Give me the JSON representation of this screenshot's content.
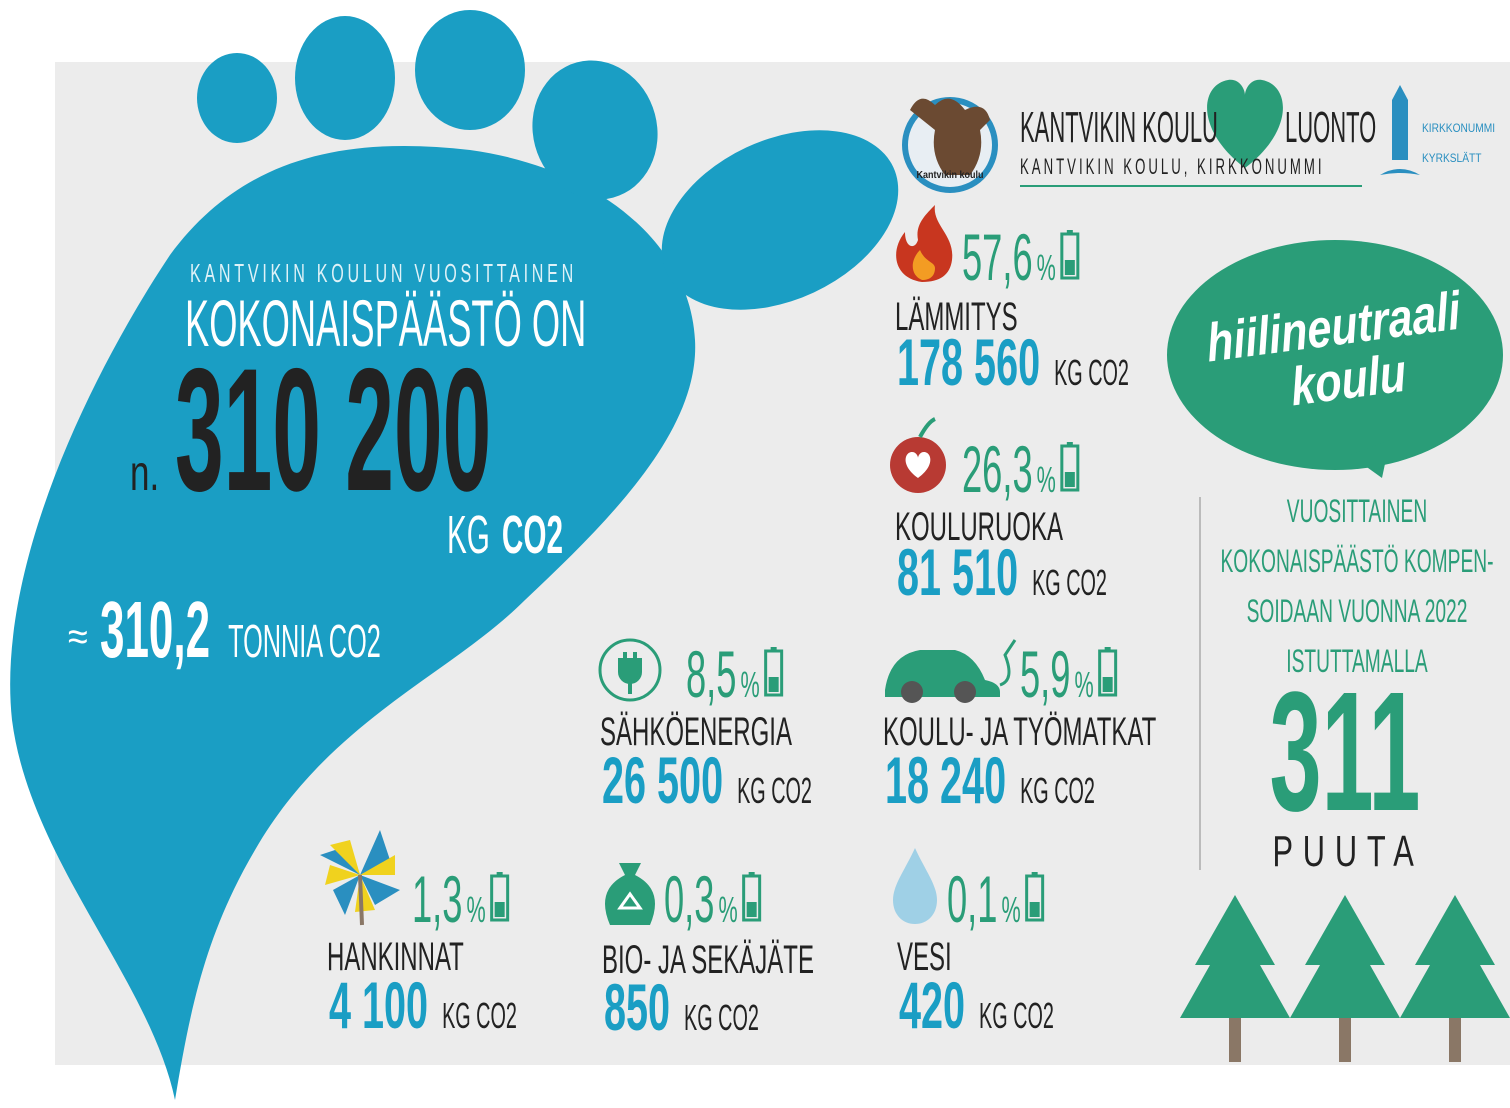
{
  "header": {
    "logo_text": "Kantvikin koulu",
    "school": "KANTVIKIN KOULU",
    "nature": "LUONTO",
    "subtitle": "KANTVIKIN KOULU, KIRKKONUMMI",
    "municipality": [
      "KIRKKONUMMI",
      "KYRKSLÄTT"
    ]
  },
  "total": {
    "intro": "KANTVIKIN KOULUN VUOSITTAINEN",
    "heading": "KOKONAISPÄÄSTÖ ON",
    "prefix": "n.",
    "value": "310 200",
    "unit_light": "KG",
    "unit_bold": "CO2",
    "approx": "≈",
    "tonnes": "310,2",
    "tonnes_unit": "TONNIA CO2"
  },
  "categories": [
    {
      "percent": "57,6",
      "percent_sign": "%",
      "name": "LÄMMITYS",
      "amount": "178 560",
      "unit": "KG CO2"
    },
    {
      "percent": "26,3",
      "percent_sign": "%",
      "name": "KOULURUOKA",
      "amount": "81 510",
      "unit": "KG CO2"
    },
    {
      "percent": "8,5",
      "percent_sign": "%",
      "name": "SÄHKÖENERGIA",
      "amount": "26 500",
      "unit": "KG CO2"
    },
    {
      "percent": "5,9",
      "percent_sign": "%",
      "name": "KOULU- JA TYÖMATKAT",
      "amount": "18 240",
      "unit": "KG CO2"
    },
    {
      "percent": "1,3",
      "percent_sign": "%",
      "name": "HANKINNAT",
      "amount": "4 100",
      "unit": "KG CO2"
    },
    {
      "percent": "0,3",
      "percent_sign": "%",
      "name": "BIO- JA SEKÄJÄTE",
      "amount": "850",
      "unit": "KG CO2"
    },
    {
      "percent": "0,1",
      "percent_sign": "%",
      "name": "VESI",
      "amount": "420",
      "unit": "KG CO2"
    }
  ],
  "neutral": {
    "bubble": [
      "hiilineutraali",
      "koulu"
    ],
    "text": [
      "VUOSITTAINEN",
      "KOKONAISPÄÄSTÖ KOMPEN-",
      "SOIDAAN VUONNA 2022",
      "ISTUTTAMALLA"
    ],
    "trees": "311",
    "trees_label": "PUUTA"
  }
}
